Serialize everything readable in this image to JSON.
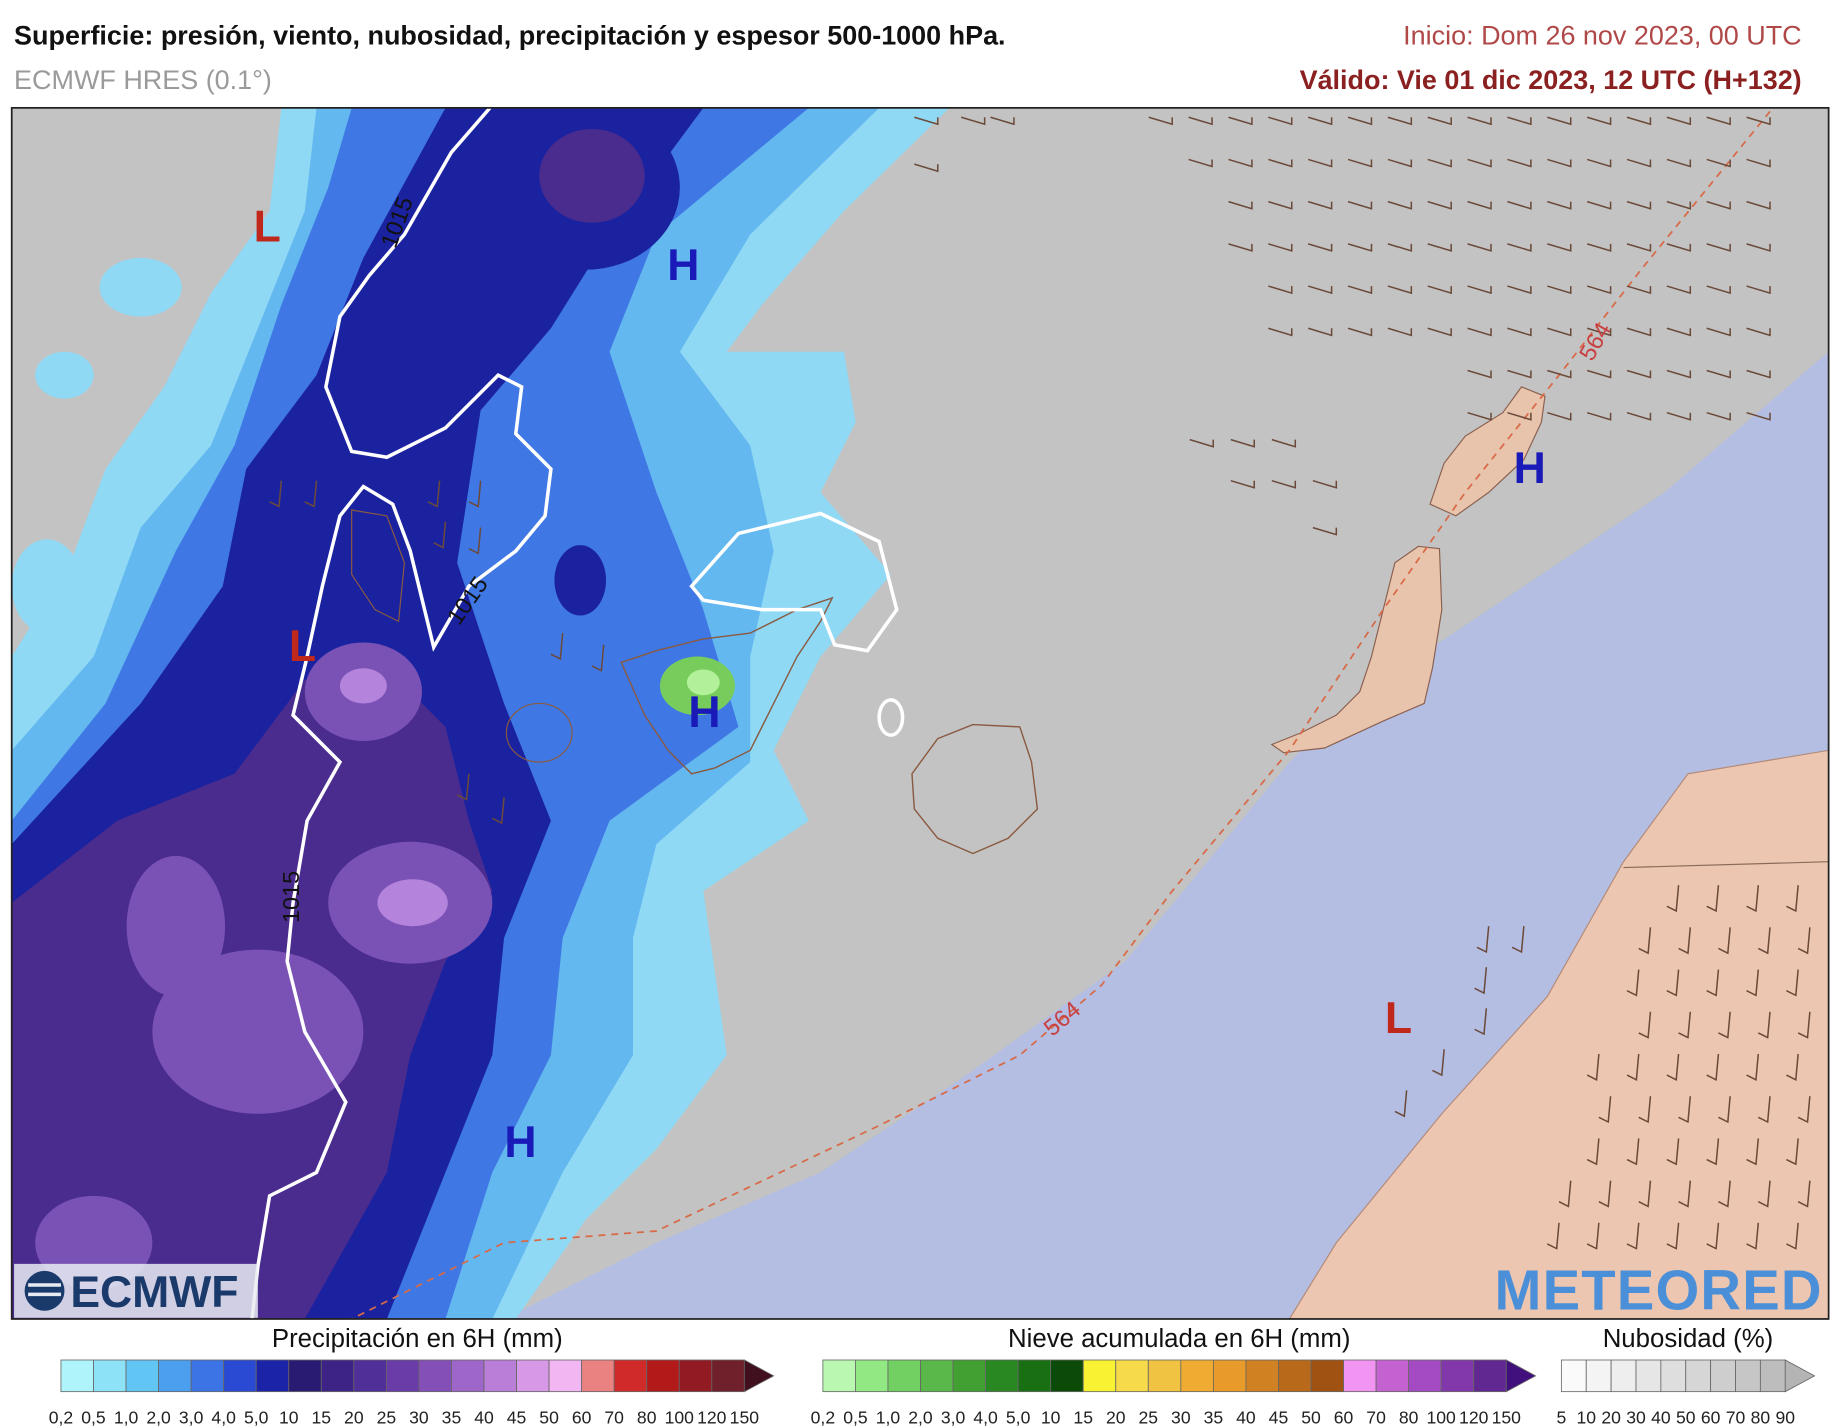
{
  "header": {
    "title": "Superficie: presión, viento, nubosidad, precipitación y espesor 500-1000 hPa.",
    "model": "ECMWF HRES (0.1°)",
    "run": "Inicio: Dom 26 nov 2023, 00 UTC",
    "valid": "Válido: Vie 01 dic 2023, 12 UTC (H+132)"
  },
  "map": {
    "pressure_centers": [
      "L",
      "H",
      "L",
      "H",
      "H",
      "L",
      "H"
    ],
    "isobar_labels": [
      "1015",
      "1015",
      "1015"
    ],
    "thickness_labels": [
      "564",
      "564"
    ]
  },
  "logos": {
    "left": "ECMWF",
    "right": "METEORED"
  },
  "legends": [
    {
      "title": "Precipitación en 6H (mm)",
      "labels": [
        "0,2",
        "0,5",
        "1,0",
        "2,0",
        "3,0",
        "4,0",
        "5,0",
        "10",
        "15",
        "20",
        "25",
        "30",
        "35",
        "40",
        "45",
        "50",
        "60",
        "70",
        "80",
        "100",
        "120",
        "150"
      ],
      "colors": [
        "#aef4fa",
        "#8ee2f8",
        "#62c6f4",
        "#4c9fee",
        "#3c74e6",
        "#2b4ad3",
        "#1b23a6",
        "#2a1b72",
        "#3d2386",
        "#512f98",
        "#6a3ca8",
        "#8450b8",
        "#9e66c8",
        "#b97ed8",
        "#d898e8",
        "#f2b6f2",
        "#ea8282",
        "#d02a2a",
        "#b21a1a",
        "#921a22",
        "#70202a",
        "#40101e"
      ]
    },
    {
      "title": "Nieve acumulada en 6H (mm)",
      "labels": [
        "0,2",
        "0,5",
        "1,0",
        "2,0",
        "3,0",
        "4,0",
        "5,0",
        "10",
        "15",
        "20",
        "25",
        "30",
        "35",
        "40",
        "45",
        "50",
        "60",
        "70",
        "80",
        "100",
        "120",
        "150"
      ],
      "colors": [
        "#baf8b2",
        "#92e882",
        "#72d062",
        "#5ab84a",
        "#42a032",
        "#2a8822",
        "#187012",
        "#0c4a08",
        "#f8f232",
        "#f6da4a",
        "#f0c442",
        "#f0ac32",
        "#e89a2a",
        "#d08222",
        "#b86a1a",
        "#a05212",
        "#f294f2",
        "#c462d2",
        "#a44ac2",
        "#8238aa",
        "#622892",
        "#42107c"
      ]
    },
    {
      "title": "Nubosidad (%)",
      "labels": [
        "5",
        "10",
        "20",
        "30",
        "40",
        "50",
        "60",
        "70",
        "80",
        "90"
      ],
      "colors": [
        "#fafafa",
        "#f4f4f4",
        "#eeeeee",
        "#e6e6e6",
        "#dedede",
        "#d6d6d6",
        "#cecece",
        "#c6c6c6",
        "#bdbdbd",
        "#b4b4b4"
      ]
    }
  ]
}
